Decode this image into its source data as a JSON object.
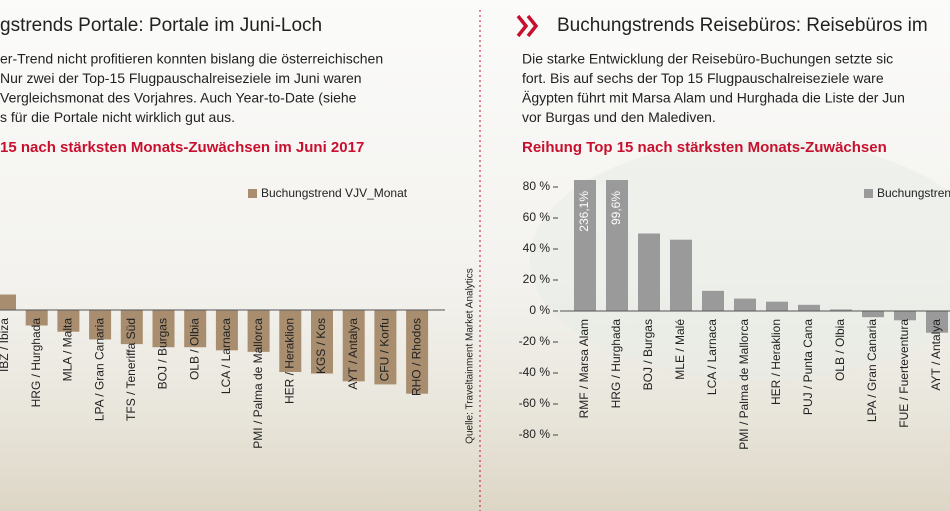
{
  "source": "Quelle: Traveltainment Market Analytics",
  "chart_data": [
    {
      "type": "bar",
      "headline": "gstrends Portale: Portale im Juni-Loch",
      "paragraph": [
        "er-Trend nicht profitieren konnten bislang die österreichischen",
        "Nur zwei der Top-15 Flugpauschalreiseziele im Juni waren",
        "Vergleichsmonat des Vorjahres. Auch Year-to-Date (siehe",
        "s für die Portale nicht wirklich gut aus."
      ],
      "title": "15 nach stärksten Monats-Zuwächsen im Juni 2017",
      "categories": [
        "IBZ / Ibiza",
        "HRG / Hurghada",
        "MLA / Malta",
        "LPA / Gran Canaria",
        "TFS / Teneriffa Süd",
        "BOJ / Burgas",
        "OLB / Olbia",
        "LCA / Larnaca",
        "PMI / Palma de Mallorca",
        "HER / Heraklion",
        "KGS / Kos",
        "AYT / Antalya",
        "CFU / Korfu",
        "RHO / Rhodos"
      ],
      "series": [
        {
          "name": "Buchungstrend VJV_Monat",
          "color": "#a88d6e",
          "values": [
            10,
            -10,
            -14,
            -19,
            -22,
            -24,
            -24,
            -26,
            -27,
            -40,
            -41,
            -46,
            -48,
            -54
          ]
        }
      ],
      "ylim": [
        -80,
        80
      ]
    },
    {
      "type": "bar",
      "headline": "Buchungstrends Reisebüros: Reisebüros im",
      "paragraph": [
        "Die starke Entwicklung der Reisebüro-Buchungen setzte sic",
        "fort. Bis auf sechs der Top 15 Flugpauschalreiseziele ware",
        "Ägypten führt mit Marsa Alam und Hurghada die Liste der Jun",
        "vor Burgas und den Malediven."
      ],
      "title": "Reihung Top 15 nach stärksten Monats-Zuwächsen",
      "categories": [
        "RMF / Marsa Alam",
        "HRG / Hurghada",
        "BOJ / Burgas",
        "MLE / Malé",
        "LCA / Larnaca",
        "PMI / Palma de Mallorca",
        "HER / Heraklion",
        "PUJ / Punta Cana",
        "OLB / Olbia",
        "LPA / Gran Canaria",
        "FUE / Fuerteventura",
        "AYT / Antalya"
      ],
      "series": [
        {
          "name": "Buchungstrend",
          "color": "#9a9a9a",
          "values": [
            236.1,
            99.6,
            50,
            46,
            13,
            8,
            6,
            4,
            1,
            -4,
            -6,
            -14
          ],
          "value_labels": [
            "236,1%",
            "99,6%",
            null,
            null,
            null,
            null,
            null,
            null,
            null,
            null,
            null,
            null
          ]
        }
      ],
      "ylim": [
        -80,
        80
      ],
      "yticks": [
        {
          "value": 80,
          "label": "80 %"
        },
        {
          "value": 60,
          "label": "60 %"
        },
        {
          "value": 40,
          "label": "40 %"
        },
        {
          "value": 20,
          "label": "20 %"
        },
        {
          "value": 0,
          "label": "0 %"
        },
        {
          "value": -20,
          "label": "-20 %"
        },
        {
          "value": -40,
          "label": "-40 %"
        },
        {
          "value": -60,
          "label": "-60 %"
        },
        {
          "value": -80,
          "label": "-80 %"
        }
      ]
    }
  ]
}
